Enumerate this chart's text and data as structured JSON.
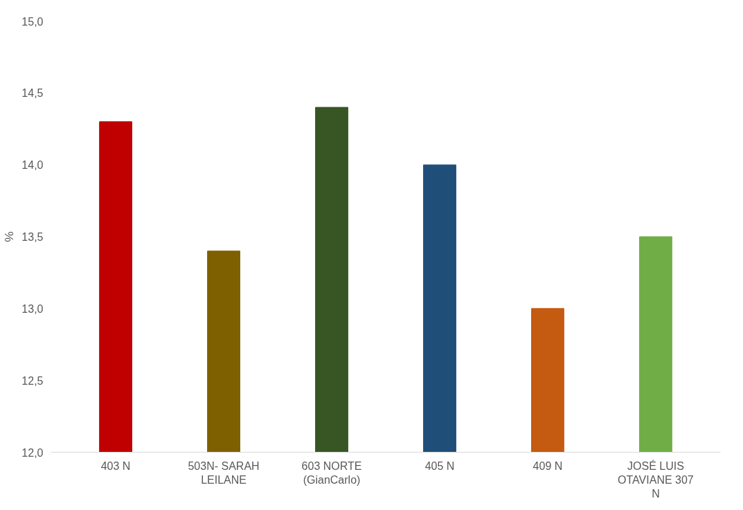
{
  "chart_data": {
    "type": "bar",
    "ylabel": "%",
    "categories": [
      "403 N",
      "503N- SARAH LEILANE",
      "603 NORTE (GianCarlo)",
      "405 N",
      "409 N",
      "JOSÉ LUIS OTAVIANE 307 N"
    ],
    "values": [
      14.3,
      13.4,
      14.4,
      14.0,
      13.0,
      13.5
    ],
    "colors": [
      "#c00000",
      "#7f6000",
      "#375623",
      "#1f4e79",
      "#c55a11",
      "#70ad47"
    ],
    "ylim": [
      12.0,
      15.0
    ],
    "yticks": [
      {
        "value": 12.0,
        "label": "12,0"
      },
      {
        "value": 12.5,
        "label": "12,5"
      },
      {
        "value": 13.0,
        "label": "13,0"
      },
      {
        "value": 13.5,
        "label": "13,5"
      },
      {
        "value": 14.0,
        "label": "14,0"
      },
      {
        "value": 14.5,
        "label": "14,5"
      },
      {
        "value": 15.0,
        "label": "15,0"
      }
    ],
    "grid": false
  }
}
